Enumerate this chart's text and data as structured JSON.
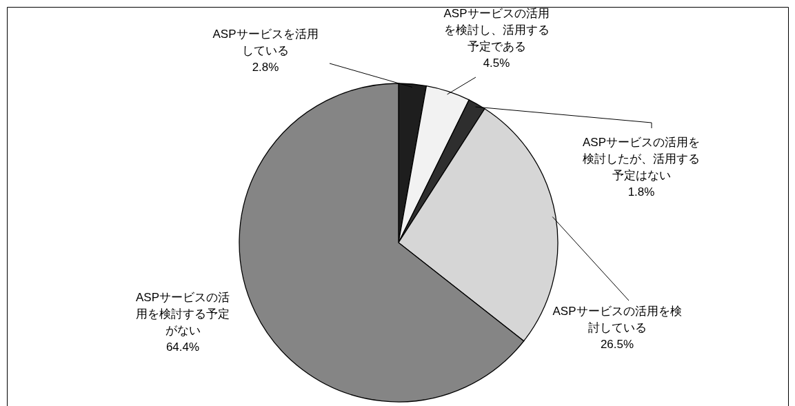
{
  "chart_data": {
    "type": "pie",
    "categories": [
      "ASPサービスを活用している",
      "ASPサービスの活用を検討し、活用する予定である",
      "ASPサービスの活用を検討したが、活用する予定はない",
      "ASPサービスの活用を検討している",
      "ASPサービスの活用を検討する予定がない"
    ],
    "values": [
      2.8,
      4.5,
      1.8,
      26.5,
      64.4
    ],
    "value_labels": [
      "2.8%",
      "4.5%",
      "1.8%",
      "26.5%",
      "64.4%"
    ],
    "colors": [
      "#1e1e1e",
      "#f2f2f2",
      "#2e2e2e",
      "#d6d6d6",
      "#858585"
    ]
  }
}
